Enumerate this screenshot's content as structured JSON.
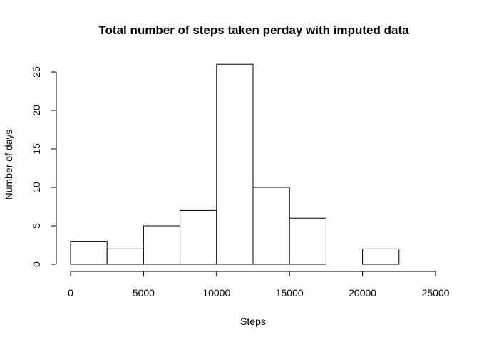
{
  "chart_data": {
    "type": "bar",
    "title": "Total number of steps taken perday with imputed data",
    "xlabel": "Steps",
    "ylabel": "Number of days",
    "bins": [
      {
        "start": 0,
        "end": 2500,
        "value": 3
      },
      {
        "start": 2500,
        "end": 5000,
        "value": 2
      },
      {
        "start": 5000,
        "end": 7500,
        "value": 5
      },
      {
        "start": 7500,
        "end": 10000,
        "value": 7
      },
      {
        "start": 10000,
        "end": 12500,
        "value": 26
      },
      {
        "start": 12500,
        "end": 15000,
        "value": 10
      },
      {
        "start": 15000,
        "end": 17500,
        "value": 6
      },
      {
        "start": 17500,
        "end": 20000,
        "value": 0
      },
      {
        "start": 20000,
        "end": 22500,
        "value": 2
      },
      {
        "start": 22500,
        "end": 25000,
        "value": 0
      }
    ],
    "xlim": [
      0,
      25000
    ],
    "ylim": [
      0,
      26
    ],
    "xticks": [
      0,
      5000,
      10000,
      15000,
      20000,
      25000
    ],
    "yticks": [
      0,
      5,
      10,
      15,
      20,
      25
    ],
    "grid": false
  }
}
